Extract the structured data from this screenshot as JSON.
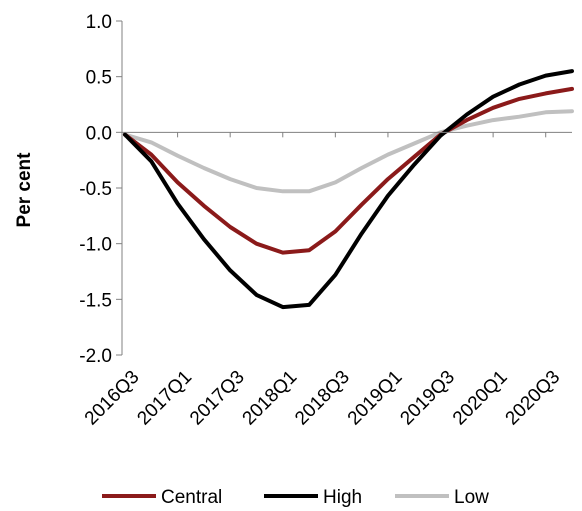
{
  "chart_data": {
    "type": "line",
    "title": "",
    "xlabel": "",
    "ylabel": "Per cent",
    "ylim": [
      -2.0,
      1.0
    ],
    "yticks": [
      "1.0",
      "0.5",
      "0.0",
      "-0.5",
      "-1.0",
      "-1.5",
      "-2.0"
    ],
    "x": [
      "2016Q3",
      "2016Q4",
      "2017Q1",
      "2017Q2",
      "2017Q3",
      "2017Q4",
      "2018Q1",
      "2018Q2",
      "2018Q3",
      "2018Q4",
      "2019Q1",
      "2019Q2",
      "2019Q3",
      "2019Q4",
      "2020Q1",
      "2020Q2",
      "2020Q3",
      "2020Q4"
    ],
    "xtick_labels": [
      "2016Q3",
      "2017Q1",
      "2017Q3",
      "2018Q1",
      "2018Q3",
      "2019Q1",
      "2019Q3",
      "2020Q1",
      "2020Q3"
    ],
    "grid": false,
    "legend_position": "bottom",
    "series": [
      {
        "name": "Central",
        "color": "#8b1a1a",
        "values": [
          -0.02,
          -0.2,
          -0.45,
          -0.66,
          -0.85,
          -1.0,
          -1.08,
          -1.06,
          -0.89,
          -0.65,
          -0.42,
          -0.22,
          -0.02,
          0.11,
          0.22,
          0.3,
          0.35,
          0.39
        ]
      },
      {
        "name": "High",
        "color": "#000000",
        "values": [
          -0.02,
          -0.26,
          -0.64,
          -0.96,
          -1.24,
          -1.46,
          -1.57,
          -1.55,
          -1.28,
          -0.91,
          -0.57,
          -0.29,
          -0.03,
          0.16,
          0.32,
          0.43,
          0.51,
          0.55
        ]
      },
      {
        "name": "Low",
        "color": "#c0c0c0",
        "values": [
          -0.02,
          -0.09,
          -0.21,
          -0.32,
          -0.42,
          -0.5,
          -0.53,
          -0.53,
          -0.45,
          -0.32,
          -0.2,
          -0.1,
          0.0,
          0.06,
          0.11,
          0.14,
          0.18,
          0.19
        ]
      }
    ]
  }
}
